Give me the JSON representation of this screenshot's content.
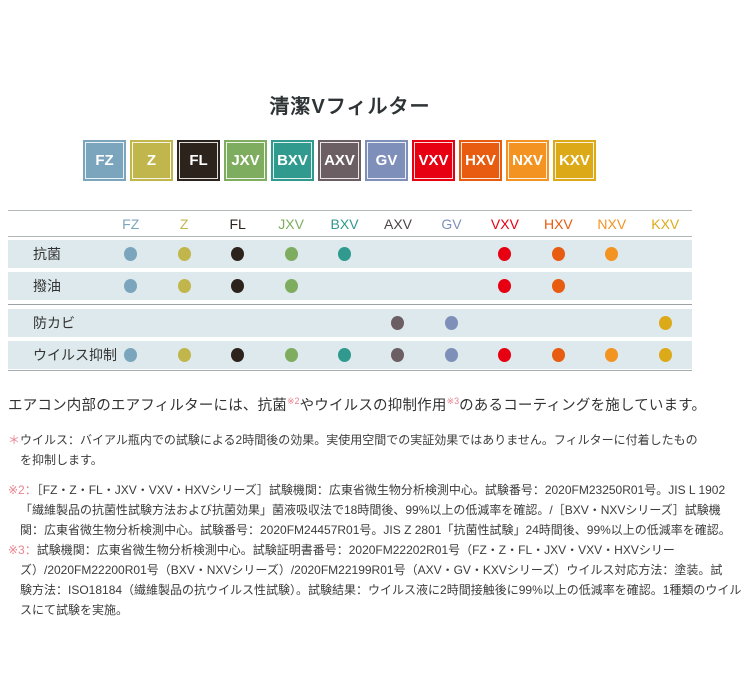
{
  "title": "清潔Vフィルター",
  "accent_pink": "#e8828c",
  "row_bg": "#dde9ec",
  "series": [
    {
      "code": "FZ",
      "color": "#7ba5bd"
    },
    {
      "code": "Z",
      "color": "#c1b64b"
    },
    {
      "code": "FL",
      "color": "#2d231d"
    },
    {
      "code": "JXV",
      "color": "#7fad60"
    },
    {
      "code": "BXV",
      "color": "#2f9a8d"
    },
    {
      "code": "AXV",
      "color": "#6c5f64",
      "header_color": "#4b454a"
    },
    {
      "code": "GV",
      "color": "#7e90ba"
    },
    {
      "code": "VXV",
      "color": "#e60012"
    },
    {
      "code": "HXV",
      "color": "#e75c10"
    },
    {
      "code": "NXV",
      "color": "#f39422"
    },
    {
      "code": "KXV",
      "color": "#dcaa18"
    }
  ],
  "table": {
    "rows": [
      {
        "label": "抗菌",
        "dots": [
          "FZ",
          "Z",
          "FL",
          "JXV",
          "BXV",
          "VXV",
          "HXV",
          "NXV"
        ]
      },
      {
        "label": "撥油",
        "dots": [
          "FZ",
          "Z",
          "FL",
          "JXV",
          "VXV",
          "HXV"
        ]
      },
      {
        "label": "防カビ",
        "dots": [
          "AXV",
          "GV",
          "KXV"
        ]
      },
      {
        "label": "ウイルス抑制",
        "dots": [
          "FZ",
          "Z",
          "FL",
          "JXV",
          "BXV",
          "AXV",
          "GV",
          "VXV",
          "HXV",
          "NXV",
          "KXV"
        ]
      }
    ]
  },
  "description": {
    "parts": [
      {
        "text": "エアコン内部のエアフィルターには、抗菌"
      },
      {
        "sup": "※2"
      },
      {
        "text": "やウイルスの抑制作用"
      },
      {
        "sup": "※3"
      },
      {
        "text": "のあるコーティングを施しています。"
      }
    ]
  },
  "footnotes": [
    {
      "marker": "＊",
      "gap_after": true,
      "lines": [
        "ウイルス：バイアル瓶内での試験による2時間後の効果。実使用空間での実証効果ではありません。フィルターに付着したもの",
        "を抑制します。"
      ]
    },
    {
      "marker": "※2：",
      "gap_after": false,
      "lines": [
        "［FZ・Z・FL・JXV・VXV・HXVシリーズ］試験機関：広東省微生物分析検測中心。試験番号：2020FM23250R01号。JIS L 1902",
        "「繊維製品の抗菌性試験方法および抗菌効果」菌液吸収法で18時間後、99%以上の低減率を確認。/［BXV・NXVシリーズ］試験機",
        "関：広東省微生物分析検測中心。試験番号：2020FM24457R01号。JIS Z 2801「抗菌性試験」24時間後、99%以上の低減率を確認。"
      ]
    },
    {
      "marker": "※3：",
      "gap_after": false,
      "lines": [
        "試験機関：広東省微生物分析検測中心。試験証明書番号：2020FM22202R01号（FZ・Z・FL・JXV・VXV・HXVシリー",
        "ズ）/2020FM22200R01号（BXV・NXVシリーズ）/2020FM22199R01号（AXV・GV・KXVシリーズ）ウイルス対応方法：塗装。試",
        "験方法：ISO18184（繊維製品の抗ウイルス性試験）。試験結果：ウイルス液に2時間接触後に99%以上の低減率を確認。1種類のウイル",
        "スにて試験を実施。"
      ]
    }
  ]
}
